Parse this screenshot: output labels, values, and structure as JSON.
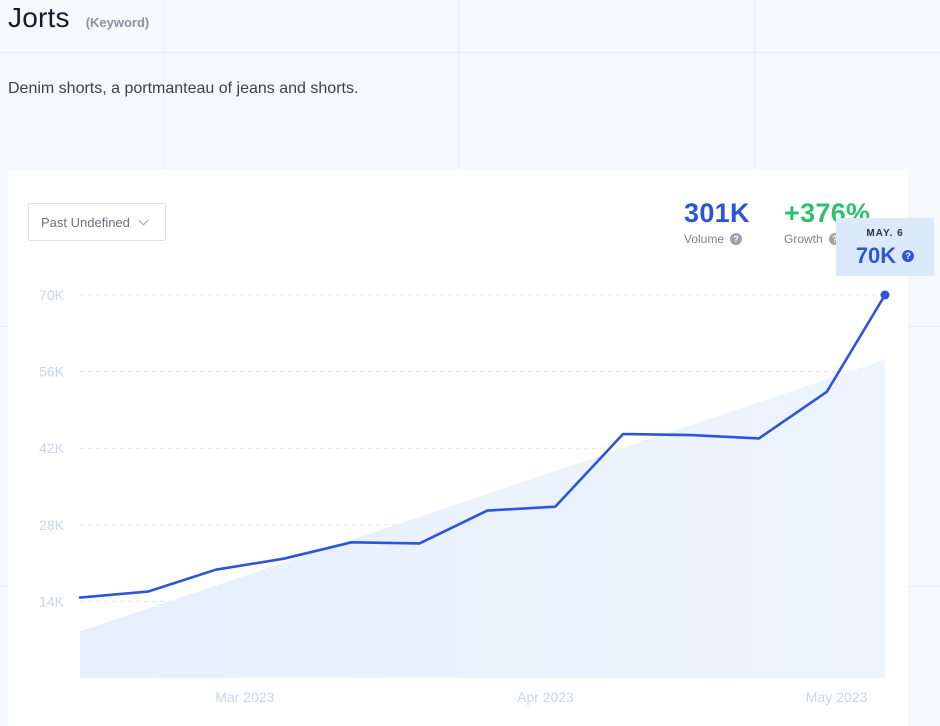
{
  "header": {
    "title": "Jorts",
    "keyword_tag": "(Keyword)",
    "description": "Denim shorts, a portmanteau of jeans and shorts."
  },
  "controls": {
    "range_selected": "Past Undefined"
  },
  "stats": {
    "volume": {
      "value": "301K",
      "label": "Volume"
    },
    "growth": {
      "value": "+376%",
      "label": "Growth"
    }
  },
  "tooltip": {
    "date": "MAY. 6",
    "value": "70K"
  },
  "colors": {
    "line": "#2e55d8",
    "growth": "#2fbf71",
    "trend_fill": "#dceafb"
  },
  "chart_data": {
    "type": "line",
    "title": "",
    "xlabel": "",
    "ylabel": "",
    "ylim": [
      0,
      70000
    ],
    "yticks": [
      14000,
      28000,
      42000,
      56000,
      70000
    ],
    "ytick_labels": [
      "14K",
      "28K",
      "42K",
      "56K",
      "70K"
    ],
    "x_ticks": [
      {
        "label": "Mar 2023",
        "x": "2023-03-01"
      },
      {
        "label": "Apr 2023",
        "x": "2023-04-01"
      },
      {
        "label": "May 2023",
        "x": "2023-05-01"
      }
    ],
    "grid": true,
    "series": [
      {
        "points": [
          {
            "x": "2023-02-12",
            "y": 14700
          },
          {
            "x": "2023-02-19",
            "y": 15800
          },
          {
            "x": "2023-02-26",
            "y": 19800
          },
          {
            "x": "2023-03-05",
            "y": 21800
          },
          {
            "x": "2023-03-12",
            "y": 24800
          },
          {
            "x": "2023-03-19",
            "y": 24600
          },
          {
            "x": "2023-03-26",
            "y": 30600
          },
          {
            "x": "2023-04-02",
            "y": 31300
          },
          {
            "x": "2023-04-09",
            "y": 44600
          },
          {
            "x": "2023-04-16",
            "y": 44400
          },
          {
            "x": "2023-04-23",
            "y": 43800
          },
          {
            "x": "2023-04-30",
            "y": 52300
          },
          {
            "x": "2023-05-06",
            "y": 70000
          }
        ]
      }
    ],
    "trend": [
      {
        "x": "2023-02-12",
        "y": 8500
      },
      {
        "x": "2023-05-06",
        "y": 58200
      }
    ]
  }
}
